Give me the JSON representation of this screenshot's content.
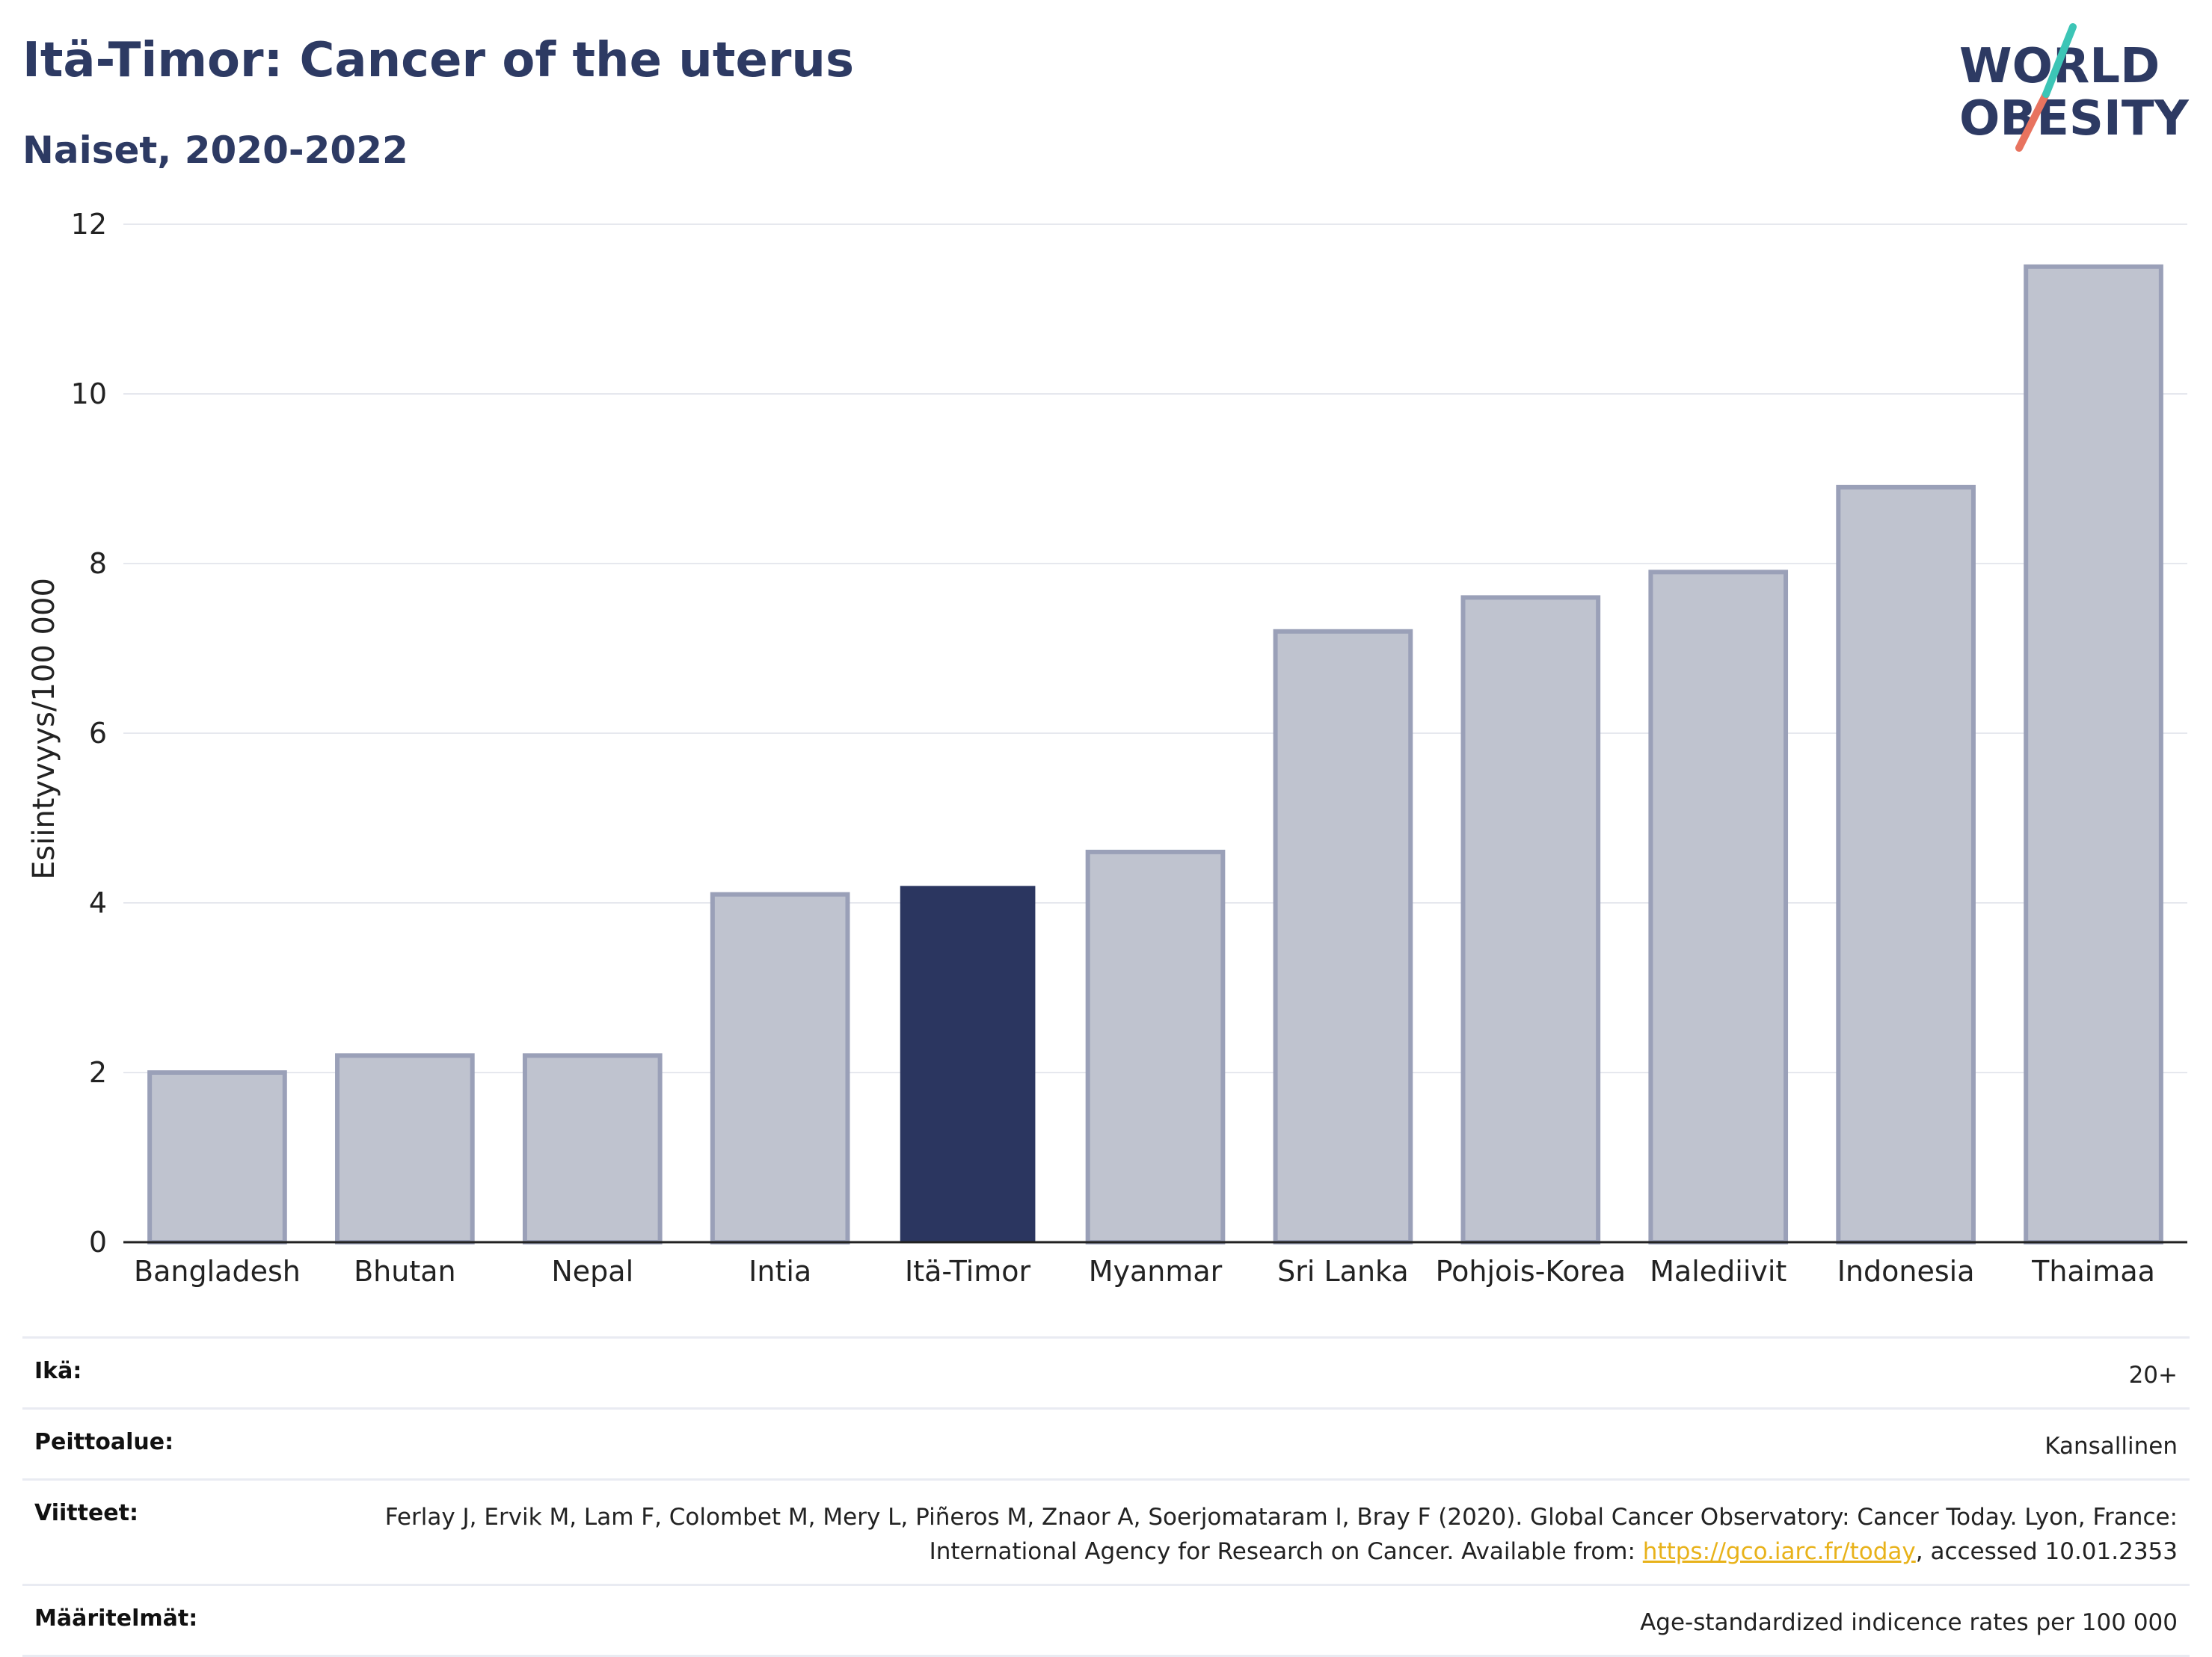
{
  "title": "Itä-Timor: Cancer of the uterus",
  "subtitle": "Naiset, 2020-2022",
  "logo": {
    "text_line1": "WORLD",
    "text_line2": "OBESITY",
    "colors": [
      "#2d3a63",
      "#3cc5b6",
      "#e8735f"
    ]
  },
  "chart_data": {
    "type": "bar",
    "title": "Itä-Timor: Cancer of the uterus",
    "subtitle": "Naiset, 2020-2022",
    "xlabel": "",
    "ylabel": "Esiintyvyys/100 000",
    "ylim": [
      0,
      12
    ],
    "yticks": [
      0,
      2,
      4,
      6,
      8,
      10,
      12
    ],
    "grid": true,
    "categories": [
      "Bangladesh",
      "Bhutan",
      "Nepal",
      "Intia",
      "Itä-Timor",
      "Myanmar",
      "Sri Lanka",
      "Pohjois-Korea",
      "Malediivit",
      "Indonesia",
      "Thaimaa"
    ],
    "values": [
      2.0,
      2.2,
      2.2,
      4.1,
      4.2,
      4.6,
      7.2,
      7.6,
      7.9,
      8.9,
      11.5
    ],
    "highlight": "Itä-Timor",
    "colors": {
      "bar": "#bfc3cf",
      "bar_edge": "#9aa0b8",
      "highlight": "#2b3660"
    }
  },
  "meta": {
    "age": {
      "label": "Ikä:",
      "value": "20+"
    },
    "coverage": {
      "label": "Peittoalue:",
      "value": "Kansallinen"
    },
    "references": {
      "label": "Viitteet:",
      "value_pre": "Ferlay J, Ervik M, Lam F, Colombet M, Mery L, Piñeros M, Znaor A, Soerjomataram I, Bray F (2020). Global Cancer Observatory: Cancer Today. Lyon, France: International Agency for Research on Cancer. Available from: ",
      "link": "https://gco.iarc.fr/today",
      "value_post": ", accessed 10.01.2353"
    },
    "definitions": {
      "label": "Määritelmät:",
      "value": "Age-standardized indicence rates per 100 000"
    }
  }
}
